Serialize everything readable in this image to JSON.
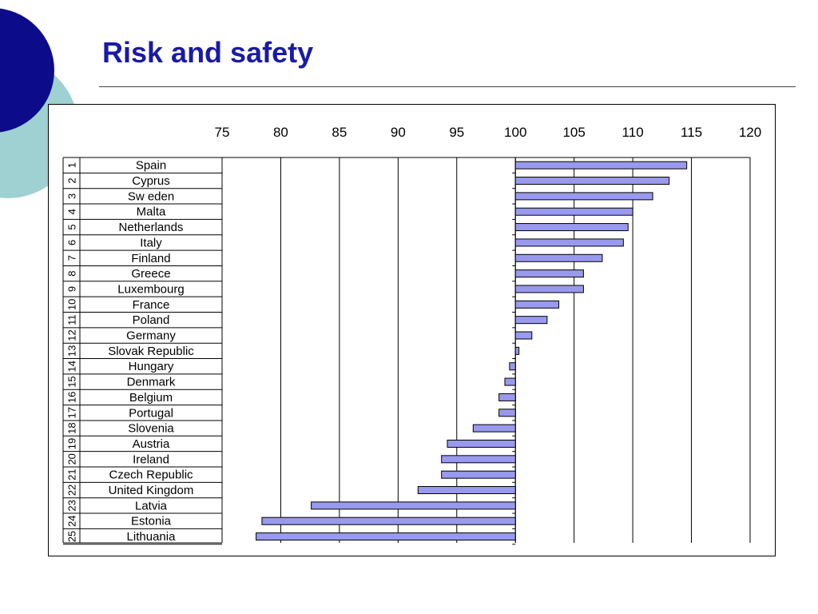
{
  "slide": {
    "title": "Risk and safety",
    "colors": {
      "title": "#1a1aa6",
      "circle_dark": "#0c0c8a",
      "circle_light": "#9fd0d2"
    }
  },
  "chart_data": {
    "type": "bar",
    "orientation": "horizontal",
    "title": "",
    "xlabel": "",
    "ylabel": "",
    "xlim": [
      75,
      120
    ],
    "ticks": [
      "75",
      "80",
      "85",
      "90",
      "95",
      "100",
      "105",
      "110",
      "115",
      "120"
    ],
    "baseline": 100,
    "grid": true,
    "bar_color": "#9999ee",
    "ranks": [
      "1",
      "2",
      "3",
      "4",
      "5",
      "6",
      "7",
      "8",
      "9",
      "10",
      "11",
      "12",
      "13",
      "14",
      "15",
      "16",
      "17",
      "18",
      "19",
      "20",
      "21",
      "22",
      "23",
      "24",
      "25"
    ],
    "categories": [
      "Spain",
      "Cyprus",
      "Sw eden",
      "Malta",
      "Netherlands",
      "Italy",
      "Finland",
      "Greece",
      "Luxembourg",
      "France",
      "Poland",
      "Germany",
      "Slovak Republic",
      "Hungary",
      "Denmark",
      "Belgium",
      "Portugal",
      "Slovenia",
      "Austria",
      "Ireland",
      "Czech Republic",
      "United Kingdom",
      "Latvia",
      "Estonia",
      "Lithuania"
    ],
    "values": [
      114.6,
      113.1,
      111.7,
      110.0,
      109.6,
      109.2,
      107.4,
      105.8,
      105.8,
      103.7,
      102.7,
      101.4,
      100.3,
      99.5,
      99.1,
      98.6,
      98.6,
      96.4,
      94.2,
      93.7,
      93.7,
      91.7,
      82.6,
      78.4,
      77.9
    ]
  }
}
